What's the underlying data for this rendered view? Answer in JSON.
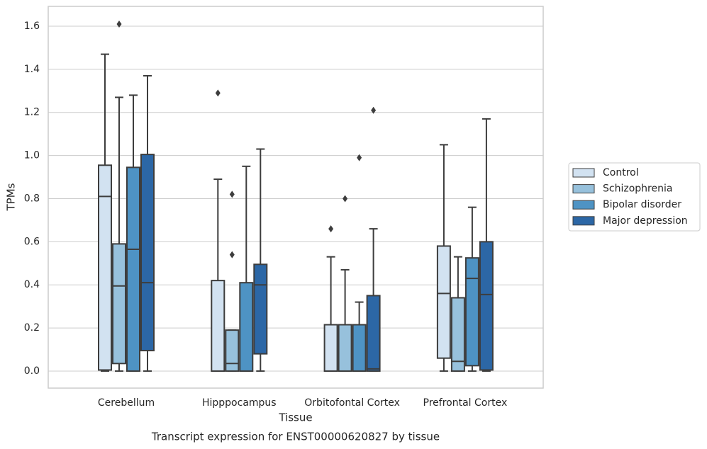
{
  "chart_data": {
    "type": "box",
    "caption": "Transcript expression for ENST00000620827 by tissue",
    "xlabel": "Tissue",
    "ylabel": "TPMs",
    "categories": [
      "Cerebellum",
      "Hipppocampus",
      "Orbitofontal Cortex",
      "Prefrontal Cortex"
    ],
    "ylim": [
      -0.079,
      1.692
    ],
    "yticks": [
      {
        "value": 0,
        "label": "0.0"
      },
      {
        "value": 0.2,
        "label": "0.2"
      },
      {
        "value": 0.4,
        "label": "0.4"
      },
      {
        "value": 0.6,
        "label": "0.6"
      },
      {
        "value": 0.8,
        "label": "0.8"
      },
      {
        "value": 1,
        "label": "1.0"
      },
      {
        "value": 1.2,
        "label": "1.2"
      },
      {
        "value": 1.4,
        "label": "1.4"
      },
      {
        "value": 1.6,
        "label": "1.6"
      }
    ],
    "grid": true,
    "legend": "right",
    "series": [
      {
        "name": "Control",
        "color": "#d2e2f1",
        "min": [
          0,
          0,
          0,
          0
        ],
        "q1": [
          0.005,
          0,
          0,
          0.06
        ],
        "median": [
          0.81,
          0,
          0,
          0.36
        ],
        "q3": [
          0.955,
          0.42,
          0.215,
          0.58
        ],
        "max": [
          1.47,
          0.89,
          0.53,
          1.05
        ],
        "outliers": [
          [],
          [
            1.29
          ],
          [
            0.66
          ],
          []
        ]
      },
      {
        "name": "Schizophrenia",
        "color": "#97c1dc",
        "min": [
          0,
          0,
          0,
          0
        ],
        "q1": [
          0.035,
          0,
          0,
          0
        ],
        "median": [
          0.395,
          0.035,
          0,
          0.045
        ],
        "q3": [
          0.59,
          0.19,
          0.215,
          0.34
        ],
        "max": [
          1.27,
          0.19,
          0.47,
          0.53
        ],
        "outliers": [
          [
            1.61
          ],
          [
            0.82,
            0.54
          ],
          [
            0.8
          ],
          []
        ]
      },
      {
        "name": "Bipolar disorder",
        "color": "#4e93c4",
        "min": [
          0,
          0,
          0,
          0
        ],
        "q1": [
          0,
          0,
          0,
          0.025
        ],
        "median": [
          0.565,
          0,
          0,
          0.43
        ],
        "q3": [
          0.945,
          0.41,
          0.215,
          0.525
        ],
        "max": [
          1.28,
          0.95,
          0.32,
          0.76
        ],
        "outliers": [
          [],
          [],
          [
            0.99
          ],
          []
        ]
      },
      {
        "name": "Major depression",
        "color": "#2c67a6",
        "min": [
          0,
          0,
          0,
          0
        ],
        "q1": [
          0.095,
          0.08,
          0,
          0.005
        ],
        "median": [
          0.41,
          0.4,
          0.01,
          0.355
        ],
        "q3": [
          1.005,
          0.495,
          0.35,
          0.6
        ],
        "max": [
          1.37,
          1.03,
          0.66,
          1.17
        ],
        "outliers": [
          [],
          [],
          [
            1.21
          ],
          []
        ]
      }
    ]
  }
}
